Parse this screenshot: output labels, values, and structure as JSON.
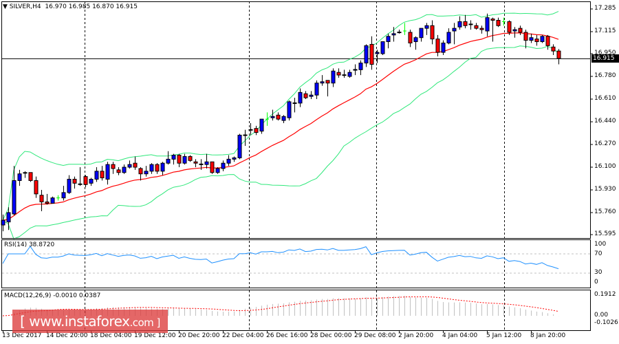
{
  "chart_header": {
    "symbol_timeframe": "SILVER,H4",
    "ohlc": "16.970 16.985 16.870 16.915",
    "menu_icon": "triangle-down-icon"
  },
  "price_axis": {
    "ticks": [
      "17.285",
      "17.115",
      "16.950",
      "16.780",
      "16.610",
      "16.440",
      "16.270",
      "16.100",
      "15.930",
      "15.760",
      "15.595"
    ],
    "current_price": "16.915"
  },
  "rsi": {
    "label": "RSI(14) 38.8720",
    "ticks": [
      "100",
      "70",
      "30",
      "0"
    ],
    "levels": [
      70,
      30
    ],
    "color": "#1e90ff"
  },
  "macd": {
    "label": "MACD(12,26,9) -0.0010 0.0387",
    "ticks": [
      "0.1912",
      "0.00",
      "-0.1026"
    ],
    "signal_color": "#ff0000",
    "hist_color": "#c0c0c0"
  },
  "time_axis": [
    "13 Dec 2017",
    "14 Dec 20:00",
    "18 Dec 04:00",
    "19 Dec 12:00",
    "20 Dec 20:00",
    "22 Dec 04:00",
    "26 Dec 16:00",
    "28 Dec 00:00",
    "29 Dec 08:00",
    "2 Jan 20:00",
    "4 Jan 04:00",
    "5 Jan 12:00",
    "8 Jan 20:00"
  ],
  "watermark": {
    "left": "[ www.instaforex",
    "right": ".com ]"
  },
  "colors": {
    "bull": "#0000ff",
    "bear": "#ff0000",
    "doji": "#00ff00",
    "bands": "#2ee87a",
    "ma": "#ff0000"
  },
  "chart_data": {
    "type": "candlestick",
    "ylim": [
      15.595,
      17.285
    ],
    "candles": [
      [
        15.667,
        15.745,
        15.62,
        15.703
      ],
      [
        15.69,
        15.8,
        15.63,
        15.76
      ],
      [
        15.75,
        16.11,
        15.74,
        16.0
      ],
      [
        16.0,
        16.08,
        15.96,
        16.05
      ],
      [
        16.057,
        16.07,
        16.02,
        16.06
      ],
      [
        16.06,
        16.06,
        15.99,
        16.0
      ],
      [
        16.0,
        16.03,
        15.87,
        15.9
      ],
      [
        15.89,
        15.93,
        15.77,
        15.84
      ],
      [
        15.84,
        15.9,
        15.82,
        15.83
      ],
      [
        15.83,
        15.88,
        15.83,
        15.87
      ],
      [
        15.87,
        15.89,
        15.85,
        15.87
      ],
      [
        15.87,
        15.96,
        15.85,
        15.91
      ],
      [
        15.91,
        16.04,
        15.9,
        16.01
      ],
      [
        16.01,
        16.03,
        15.94,
        15.98
      ],
      [
        15.972,
        16.1,
        15.96,
        15.975
      ],
      [
        16.03,
        16.04,
        15.95,
        15.97
      ],
      [
        15.98,
        16.02,
        15.96,
        16.01
      ],
      [
        16.01,
        16.1,
        15.99,
        16.07
      ],
      [
        16.07,
        16.11,
        16.0,
        16.02
      ],
      [
        16.01,
        16.14,
        15.97,
        16.12
      ],
      [
        16.12,
        16.14,
        16.05,
        16.09
      ],
      [
        16.08,
        16.1,
        16.04,
        16.06
      ],
      [
        16.06,
        16.12,
        16.05,
        16.1
      ],
      [
        16.1,
        16.15,
        16.09,
        16.12
      ],
      [
        16.13,
        16.18,
        16.08,
        16.1
      ],
      [
        16.09,
        16.1,
        16.0,
        16.05
      ],
      [
        16.05,
        16.11,
        16.03,
        16.07
      ],
      [
        16.07,
        16.13,
        16.05,
        16.12
      ],
      [
        16.12,
        16.13,
        16.05,
        16.07
      ],
      [
        16.07,
        16.14,
        16.04,
        16.13
      ],
      [
        16.13,
        16.22,
        16.12,
        16.16
      ],
      [
        16.16,
        16.2,
        16.12,
        16.19
      ],
      [
        16.19,
        16.2,
        16.1,
        16.13
      ],
      [
        16.13,
        16.2,
        16.12,
        16.18
      ],
      [
        16.18,
        16.19,
        16.14,
        16.15
      ],
      [
        16.14,
        16.16,
        16.1,
        16.13
      ],
      [
        16.121,
        16.16,
        16.08,
        16.124
      ],
      [
        16.12,
        16.2,
        16.09,
        16.14
      ],
      [
        16.14,
        16.14,
        16.05,
        16.06
      ],
      [
        16.06,
        16.1,
        16.05,
        16.09
      ],
      [
        16.09,
        16.15,
        16.07,
        16.13
      ],
      [
        16.13,
        16.19,
        16.11,
        16.16
      ],
      [
        16.16,
        16.18,
        16.14,
        16.17
      ],
      [
        16.17,
        16.35,
        16.16,
        16.34
      ],
      [
        16.338,
        16.38,
        16.26,
        16.342
      ],
      [
        16.378,
        16.43,
        16.34,
        16.382
      ],
      [
        16.39,
        16.41,
        16.34,
        16.36
      ],
      [
        16.37,
        16.46,
        16.35,
        16.46
      ],
      [
        16.46,
        16.51,
        16.41,
        16.46
      ],
      [
        16.47,
        16.53,
        16.45,
        16.48
      ],
      [
        16.49,
        16.51,
        16.45,
        16.46
      ],
      [
        16.45,
        16.49,
        16.43,
        16.48
      ],
      [
        16.47,
        16.6,
        16.45,
        16.59
      ],
      [
        16.578,
        16.62,
        16.51,
        16.582
      ],
      [
        16.58,
        16.69,
        16.55,
        16.66
      ],
      [
        16.65,
        16.67,
        16.61,
        16.62
      ],
      [
        16.63,
        16.67,
        16.61,
        16.64
      ],
      [
        16.64,
        16.75,
        16.61,
        16.73
      ],
      [
        16.73,
        16.79,
        16.71,
        16.74
      ],
      [
        16.75,
        16.75,
        16.63,
        16.73
      ],
      [
        16.73,
        16.84,
        16.7,
        16.82
      ],
      [
        16.81,
        16.84,
        16.77,
        16.79
      ],
      [
        16.788,
        16.83,
        16.77,
        16.792
      ],
      [
        16.78,
        16.83,
        16.77,
        16.81
      ],
      [
        16.826,
        16.87,
        16.79,
        16.832
      ],
      [
        16.83,
        16.9,
        16.79,
        16.88
      ],
      [
        16.88,
        17.02,
        16.85,
        17.01
      ],
      [
        17.02,
        17.08,
        16.83,
        16.87
      ],
      [
        16.95,
        16.98,
        16.88,
        16.96
      ],
      [
        16.95,
        17.04,
        16.94,
        17.04
      ],
      [
        17.04,
        17.1,
        16.99,
        17.08
      ],
      [
        17.09,
        17.15,
        17.04,
        17.1
      ],
      [
        17.108,
        17.13,
        17.1,
        17.112
      ],
      [
        17.12,
        17.18,
        17.09,
        17.12
      ],
      [
        17.11,
        17.13,
        17.0,
        17.03
      ],
      [
        17.04,
        17.08,
        16.98,
        17.07
      ],
      [
        17.07,
        17.14,
        17.04,
        17.14
      ],
      [
        17.14,
        17.18,
        17.09,
        17.16
      ],
      [
        17.16,
        17.2,
        17.02,
        17.06
      ],
      [
        17.06,
        17.09,
        16.93,
        16.96
      ],
      [
        16.96,
        17.05,
        16.94,
        17.03
      ],
      [
        17.03,
        17.14,
        17.02,
        17.11
      ],
      [
        17.12,
        17.18,
        17.02,
        17.14
      ],
      [
        17.15,
        17.23,
        17.13,
        17.19
      ],
      [
        17.19,
        17.24,
        17.14,
        17.16
      ],
      [
        17.168,
        17.2,
        17.13,
        17.172
      ],
      [
        17.16,
        17.18,
        17.13,
        17.14
      ],
      [
        17.14,
        17.16,
        17.1,
        17.13
      ],
      [
        17.12,
        17.25,
        17.08,
        17.22
      ],
      [
        17.21,
        17.22,
        17.04,
        17.2
      ],
      [
        17.2,
        17.22,
        17.15,
        17.16
      ],
      [
        17.19,
        17.22,
        17.16,
        17.19
      ],
      [
        17.19,
        17.2,
        17.09,
        17.11
      ],
      [
        17.12,
        17.15,
        17.07,
        17.13
      ],
      [
        17.14,
        17.16,
        17.09,
        17.11
      ],
      [
        17.11,
        17.13,
        16.99,
        17.05
      ],
      [
        17.05,
        17.1,
        17.03,
        17.07
      ],
      [
        17.06,
        17.09,
        17.01,
        17.04
      ],
      [
        17.04,
        17.09,
        17.03,
        17.08
      ],
      [
        17.08,
        17.09,
        16.98,
        17.01
      ],
      [
        17.0,
        17.02,
        16.94,
        16.97
      ],
      [
        16.97,
        16.985,
        16.87,
        16.915
      ]
    ],
    "indicators": [
      "Bollinger Bands",
      "Moving Average",
      "RSI(14)",
      "MACD(12,26,9)"
    ]
  }
}
